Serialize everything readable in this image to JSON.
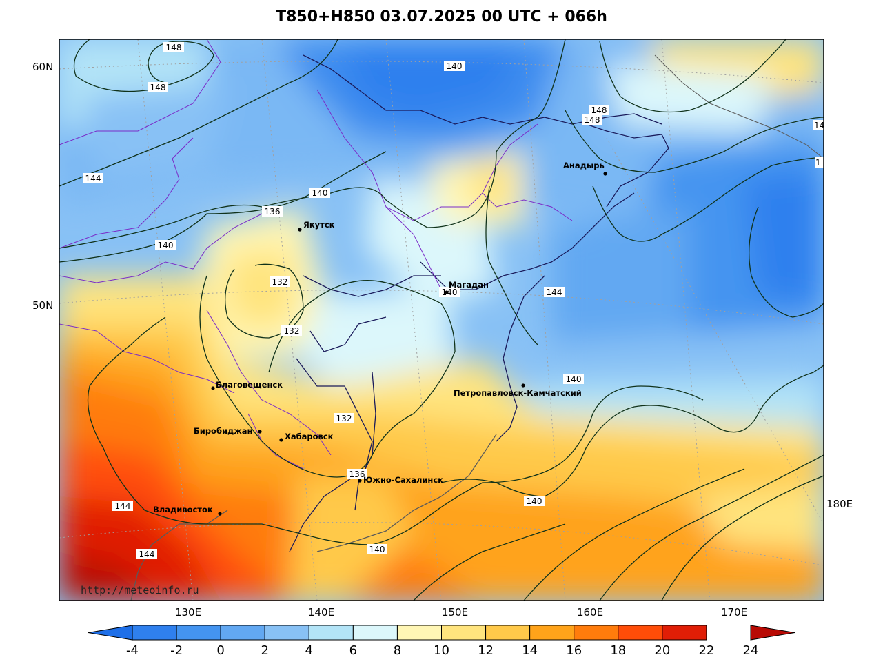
{
  "title": "T850+H850 03.07.2025 00 UTC + 066h",
  "source_url": "http://meteoinfo.ru",
  "lat_labels": [
    "60N",
    "50N"
  ],
  "lon_labels": [
    "130E",
    "140E",
    "150E",
    "160E",
    "170E",
    "180E"
  ],
  "cities": [
    {
      "name": "Якутск"
    },
    {
      "name": "Магадан"
    },
    {
      "name": "Анадырь"
    },
    {
      "name": "Благовещенск"
    },
    {
      "name": "Биробиджан"
    },
    {
      "name": "Хабаровск"
    },
    {
      "name": "Южно-Сахалинск"
    },
    {
      "name": "Владивосток"
    },
    {
      "name": "Петропавловск-Камчатский"
    }
  ],
  "contour_labels": [
    "148",
    "148",
    "140",
    "148",
    "148",
    "144",
    "140",
    "136",
    "140",
    "132",
    "132",
    "140",
    "144",
    "132",
    "136",
    "140",
    "144",
    "144",
    "140",
    "14",
    "1"
  ],
  "colorbar": {
    "ticks": [
      "-4",
      "-2",
      "0",
      "2",
      "4",
      "6",
      "8",
      "10",
      "12",
      "14",
      "16",
      "18",
      "20",
      "22",
      "24"
    ],
    "colors": [
      "#1e6fe8",
      "#2f80ee",
      "#4494f0",
      "#62a8f2",
      "#88c1f5",
      "#b3e4f7",
      "#dcf7fb",
      "#fff6b5",
      "#ffe47e",
      "#ffc94a",
      "#ffa31a",
      "#ff7c0c",
      "#ff4d08",
      "#e01e06",
      "#b80a04"
    ],
    "unit": "degC"
  },
  "fields": {
    "temperature_850": "shaded",
    "geopotential_850": "contours"
  }
}
